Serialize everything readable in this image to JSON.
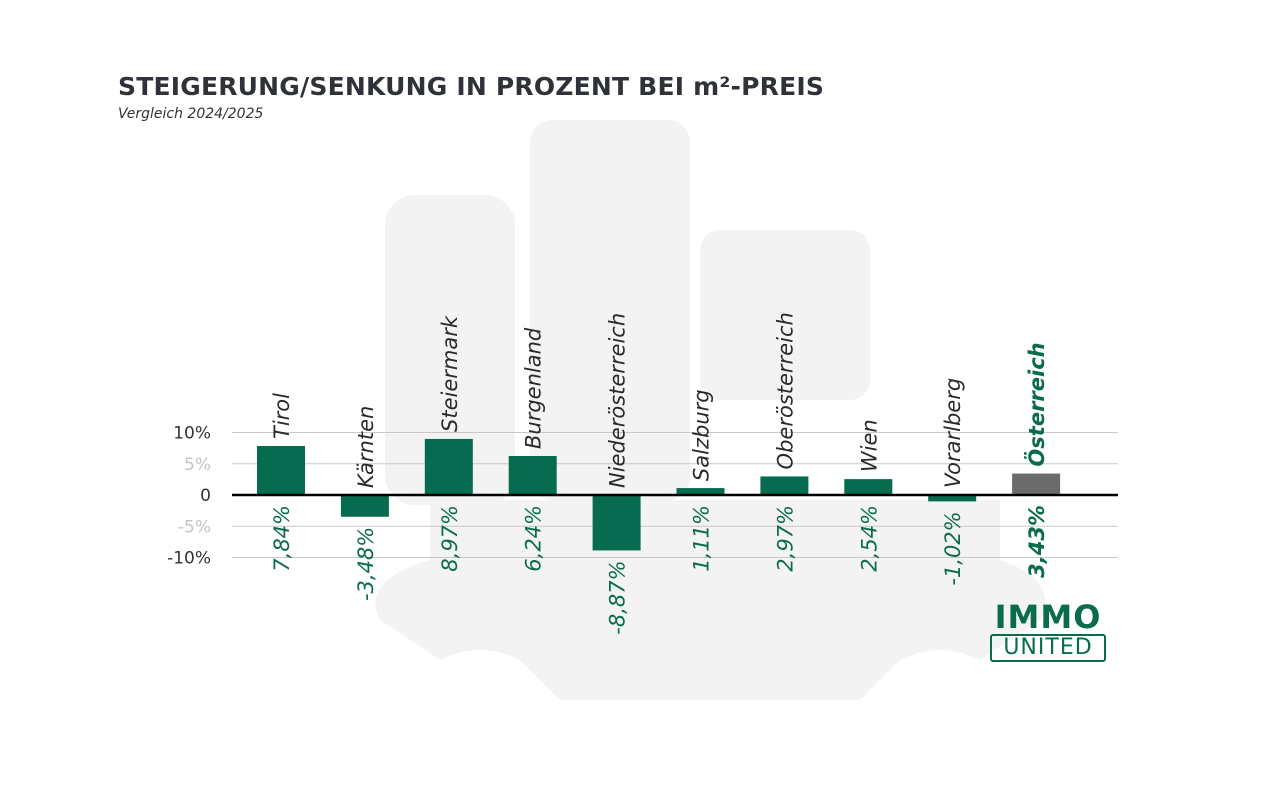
{
  "title": "STEIGERUNG/SENKUNG IN PROZENT BEI m²-PREIS",
  "subtitle": "Vergleich 2024/2025",
  "logo": {
    "line1": "IMMO",
    "line2": "UNITED"
  },
  "colors": {
    "positive_negative_bar": "#066b4f",
    "total_bar": "#6b6b6b",
    "label_text": "#0b6b4d",
    "watermark": "#f2f2f2"
  },
  "chart_data": {
    "type": "bar",
    "title": "STEIGERUNG/SENKUNG IN PROZENT BEI m²-PREIS",
    "subtitle": "Vergleich 2024/2025",
    "categories": [
      "Tirol",
      "Kärnten",
      "Steiermark",
      "Burgenland",
      "Niederösterreich",
      "Salzburg",
      "Oberösterreich",
      "Wien",
      "Vorarlberg",
      "Österreich"
    ],
    "values": [
      7.84,
      -3.48,
      8.97,
      6.24,
      -8.87,
      1.11,
      2.97,
      2.54,
      -1.02,
      3.43
    ],
    "value_labels": [
      "7,84%",
      "-3,48%",
      "8,97%",
      "6,24%",
      "-8,87%",
      "1,11%",
      "2,97%",
      "2,54%",
      "-1,02%",
      "3,43%"
    ],
    "highlight_category": "Österreich",
    "ylim": [
      -10,
      10
    ],
    "yticks": [
      10,
      5,
      0,
      -5,
      -10
    ],
    "ytick_labels": [
      "10%",
      "5%",
      "0",
      "-5%",
      "-10%"
    ],
    "grid": true,
    "xlabel": "",
    "ylabel": ""
  }
}
